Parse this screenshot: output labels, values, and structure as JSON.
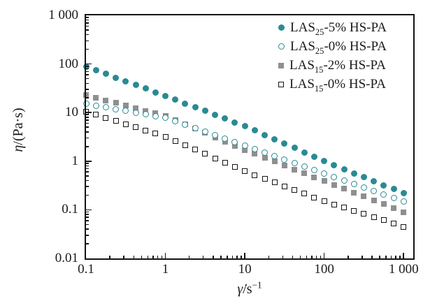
{
  "figure": {
    "background": "#ffffff",
    "text_color": "#1a1a1a",
    "axis_color": "#141414"
  },
  "chart_data": {
    "type": "scatter",
    "scale": "log-log",
    "grid": false,
    "legend_position": "top-right-inside",
    "x_label": {
      "symbol": "γ̇",
      "unit": "/s",
      "exponent": "−1"
    },
    "y_label": {
      "symbol": "η",
      "unit": "/(Pa·s)"
    },
    "x_range": [
      0.1,
      1350
    ],
    "y_range": [
      0.01,
      1000
    ],
    "x_ticks": [
      {
        "label": "0.1",
        "value": 0.1
      },
      {
        "label": "1",
        "value": 1
      },
      {
        "label": "10",
        "value": 10
      },
      {
        "label": "100",
        "value": 100
      },
      {
        "label": "1 000",
        "value": 1000
      }
    ],
    "y_ticks": [
      {
        "label": "1 000",
        "value": 1000
      },
      {
        "label": "100",
        "value": 100
      },
      {
        "label": "10",
        "value": 10
      },
      {
        "label": "1",
        "value": 1
      },
      {
        "label": "0.1",
        "value": 0.1
      },
      {
        "label": "0.01",
        "value": 0.01
      }
    ],
    "x": [
      0.1,
      0.133,
      0.178,
      0.237,
      0.316,
      0.422,
      0.562,
      0.75,
      1,
      1.33,
      1.78,
      2.37,
      3.16,
      4.22,
      5.62,
      7.5,
      10,
      13.3,
      17.8,
      23.7,
      31.6,
      42.2,
      56.2,
      75,
      100,
      133,
      178,
      237,
      316,
      422,
      562,
      750,
      1000
    ],
    "series": [
      {
        "name": "LAS25-5% HS-PA",
        "label_prefix": "LAS",
        "label_sub": "25",
        "label_suffix": "-5% HS-PA",
        "marker": "filled-circle",
        "color": "#2a8a93",
        "values": [
          87.9,
          73.9,
          62.2,
          52.2,
          44.0,
          37.0,
          31.1,
          26.1,
          22.0,
          18.4,
          15.4,
          12.9,
          10.8,
          9.04,
          7.57,
          6.33,
          5.3,
          4.3,
          3.49,
          2.84,
          2.3,
          1.87,
          1.52,
          1.23,
          1.0,
          0.827,
          0.685,
          0.566,
          0.469,
          0.388,
          0.321,
          0.266,
          0.22
        ]
      },
      {
        "name": "LAS25-0% HS-PA",
        "label_prefix": "LAS",
        "label_sub": "25",
        "label_suffix": "-0% HS-PA",
        "marker": "open-circle",
        "color": "#2a8a93",
        "values": [
          15.0,
          13.8,
          12.7,
          11.7,
          10.8,
          9.97,
          9.18,
          8.47,
          7.8,
          6.62,
          5.62,
          4.77,
          4.05,
          3.43,
          2.92,
          2.47,
          2.1,
          1.78,
          1.5,
          1.27,
          1.07,
          0.908,
          0.769,
          0.65,
          0.55,
          0.467,
          0.397,
          0.338,
          0.287,
          0.244,
          0.208,
          0.177,
          0.15
        ]
      },
      {
        "name": "LAS15-2% HS-PA",
        "label_prefix": "LAS",
        "label_sub": "15",
        "label_suffix": "-2% HS-PA",
        "marker": "filled-square",
        "color": "#8f8f8f",
        "values": [
          23.0,
          20.3,
          17.9,
          15.8,
          14.0,
          12.3,
          10.9,
          9.62,
          8.5,
          6.95,
          5.68,
          4.64,
          3.8,
          3.1,
          2.54,
          2.08,
          1.7,
          1.41,
          1.18,
          0.978,
          0.814,
          0.677,
          0.564,
          0.469,
          0.39,
          0.325,
          0.27,
          0.225,
          0.187,
          0.156,
          0.13,
          0.108,
          0.09
        ]
      },
      {
        "name": "LAS15-0% HS-PA",
        "label_prefix": "LAS",
        "label_sub": "15",
        "label_suffix": "-0% HS-PA",
        "marker": "open-square",
        "color": "#141414",
        "values": [
          10.5,
          9.05,
          7.8,
          6.73,
          5.79,
          5.0,
          4.31,
          3.71,
          3.2,
          2.61,
          2.12,
          1.73,
          1.41,
          1.15,
          0.934,
          0.76,
          0.62,
          0.519,
          0.435,
          0.364,
          0.305,
          0.255,
          0.214,
          0.179,
          0.15,
          0.129,
          0.111,
          0.0955,
          0.0822,
          0.0706,
          0.0608,
          0.0523,
          0.045
        ]
      }
    ]
  }
}
